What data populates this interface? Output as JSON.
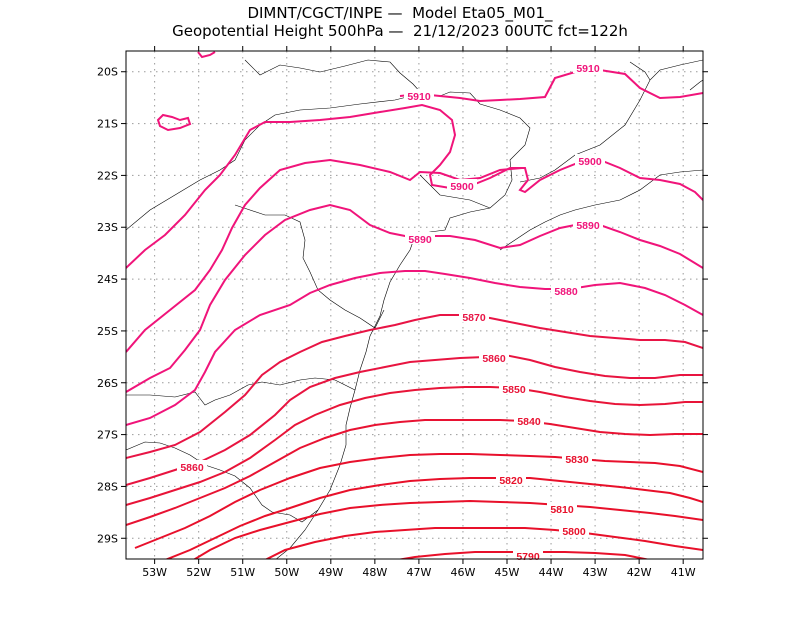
{
  "header": {
    "line1": "DIMNT/CGCT/INPE —  Model Eta05_M01_",
    "line2": "Geopotential Height 500hPa —  21/12/2023 00UTC fct=122h"
  },
  "chart_data": {
    "type": "contour-map",
    "variable": "Geopotential Height 500hPa",
    "x_ticks": [
      "53W",
      "52W",
      "51W",
      "50W",
      "49W",
      "48W",
      "47W",
      "46W",
      "45W",
      "44W",
      "43W",
      "42W",
      "41W"
    ],
    "y_ticks": [
      "20S",
      "21S",
      "22S",
      "23S",
      "24S",
      "25S",
      "26S",
      "27S",
      "28S",
      "29S"
    ],
    "lon_range": [
      -53.65,
      -40.55
    ],
    "lat_range": [
      -19.6,
      -29.4
    ],
    "grid": true,
    "contour_levels": [
      5790,
      5800,
      5810,
      5820,
      5830,
      5840,
      5850,
      5860,
      5870,
      5880,
      5890,
      5900,
      5910
    ],
    "contour_labels": [
      {
        "value": "5910"
      },
      {
        "value": "5910"
      },
      {
        "value": "5900"
      },
      {
        "value": "5900"
      },
      {
        "value": "5890"
      },
      {
        "value": "5890"
      },
      {
        "value": "5880"
      },
      {
        "value": "5870"
      },
      {
        "value": "5860"
      },
      {
        "value": "5860"
      },
      {
        "value": "5850"
      },
      {
        "value": "5840"
      },
      {
        "value": "5830"
      },
      {
        "value": "5820"
      },
      {
        "value": "5810"
      },
      {
        "value": "5800"
      },
      {
        "value": "5790"
      }
    ],
    "colors": {
      "high_contours": "#f0147a",
      "low_contours": "#e8102a",
      "coastline": "#000000",
      "grid": "#9a9a9a"
    }
  }
}
